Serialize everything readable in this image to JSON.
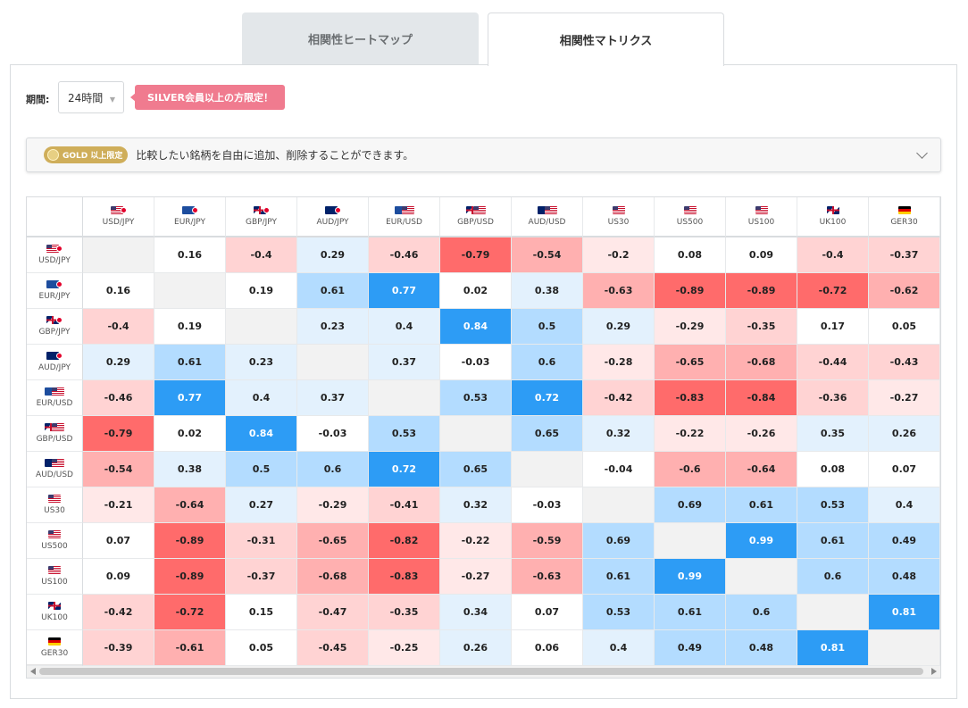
{
  "tabs": {
    "heatmap": "相関性ヒートマップ",
    "matrix": "相関性マトリクス"
  },
  "period": {
    "label": "期間:",
    "value": "24時間"
  },
  "silver_notice": "SILVER会員以上の方限定！",
  "gold": {
    "badge": "GOLD 以上限定",
    "text": "比較したい銘柄を自由に追加、削除することができます。"
  },
  "colors": {
    "positive_strong": "#2d9cf5",
    "negative_strong": "#ff6b6b",
    "diagonal": "#f2f2f2"
  },
  "chart_data": {
    "type": "heatmap",
    "title": "相関性マトリクス",
    "symbols": [
      "USD/JPY",
      "EUR/JPY",
      "GBP/JPY",
      "AUD/JPY",
      "EUR/USD",
      "GBP/USD",
      "AUD/USD",
      "US30",
      "US500",
      "US100",
      "UK100",
      "GER30"
    ],
    "flags": [
      [
        "us",
        "jp"
      ],
      [
        "eu",
        "jp"
      ],
      [
        "gb",
        "jp"
      ],
      [
        "au",
        "jp"
      ],
      [
        "eu",
        "us"
      ],
      [
        "gb",
        "us"
      ],
      [
        "au",
        "us"
      ],
      [
        "us"
      ],
      [
        "us"
      ],
      [
        "us"
      ],
      [
        "gb"
      ],
      [
        "de"
      ]
    ],
    "columns": [
      "USD/JPY",
      "EUR/JPY",
      "GBP/JPY",
      "AUD/JPY",
      "EUR/USD",
      "GBP/USD",
      "AUD/USD",
      "US30",
      "US500",
      "US100",
      "UK100",
      "GER30"
    ],
    "values": [
      [
        null,
        0.16,
        -0.4,
        0.29,
        -0.46,
        -0.79,
        -0.54,
        -0.2,
        0.08,
        0.09,
        -0.4,
        -0.37
      ],
      [
        0.16,
        null,
        0.19,
        0.61,
        0.77,
        0.02,
        0.38,
        -0.63,
        -0.89,
        -0.89,
        -0.72,
        -0.62
      ],
      [
        -0.4,
        0.19,
        null,
        0.23,
        0.4,
        0.84,
        0.5,
        0.29,
        -0.29,
        -0.35,
        0.17,
        0.05
      ],
      [
        0.29,
        0.61,
        0.23,
        null,
        0.37,
        -0.03,
        0.6,
        -0.28,
        -0.65,
        -0.68,
        -0.44,
        -0.43
      ],
      [
        -0.46,
        0.77,
        0.4,
        0.37,
        null,
        0.53,
        0.72,
        -0.42,
        -0.83,
        -0.84,
        -0.36,
        -0.27
      ],
      [
        -0.79,
        0.02,
        0.84,
        -0.03,
        0.53,
        null,
        0.65,
        0.32,
        -0.22,
        -0.26,
        0.35,
        0.26
      ],
      [
        -0.54,
        0.38,
        0.5,
        0.6,
        0.72,
        0.65,
        null,
        -0.04,
        -0.6,
        -0.64,
        0.08,
        0.07
      ],
      [
        -0.21,
        -0.64,
        0.27,
        -0.29,
        -0.41,
        0.32,
        -0.03,
        null,
        0.69,
        0.61,
        0.53,
        0.4
      ],
      [
        0.07,
        -0.89,
        -0.31,
        -0.65,
        -0.82,
        -0.22,
        -0.59,
        0.69,
        null,
        0.99,
        0.61,
        0.49
      ],
      [
        0.09,
        -0.89,
        -0.37,
        -0.68,
        -0.83,
        -0.27,
        -0.63,
        0.61,
        0.99,
        null,
        0.6,
        0.48
      ],
      [
        -0.42,
        -0.72,
        0.15,
        -0.47,
        -0.35,
        0.34,
        0.07,
        0.53,
        0.61,
        0.6,
        null,
        0.81
      ],
      [
        -0.39,
        -0.61,
        0.05,
        -0.45,
        -0.25,
        0.26,
        0.06,
        0.4,
        0.49,
        0.48,
        0.81,
        null
      ]
    ],
    "range": [
      -1,
      1
    ]
  }
}
